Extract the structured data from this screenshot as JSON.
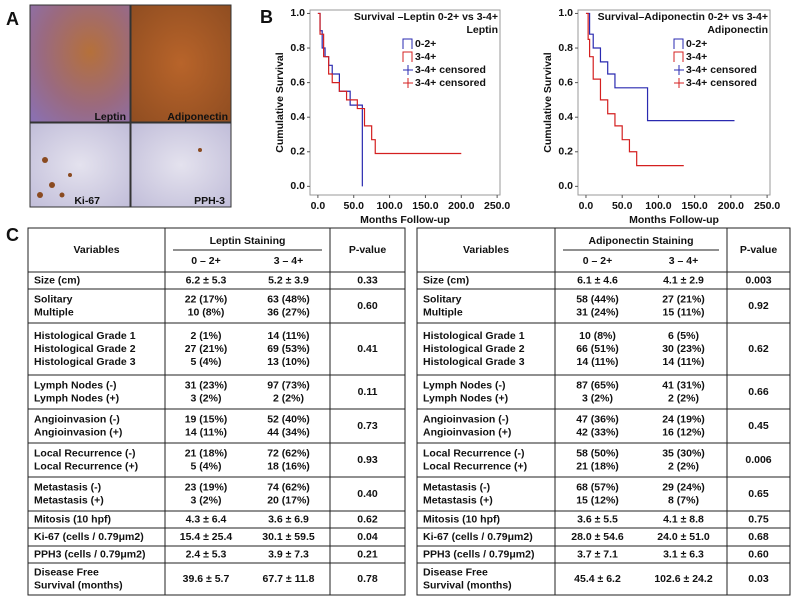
{
  "panel_labels": [
    "A",
    "B",
    "C"
  ],
  "images": [
    "Leptin",
    "Adiponectin",
    "Ki-67",
    "PPH-3"
  ],
  "chart_data": [
    {
      "type": "line",
      "title": "Survival –Leptin 0-2+ vs 3-4+",
      "subtitle": "Leptin",
      "y_label": "Cumulative Survival",
      "x_label": "Months Follow-up",
      "xlim": [
        -11,
        254
      ],
      "ylim": [
        -0.05,
        1.02
      ],
      "xticks": [
        {
          "value": 0,
          "label": "0.0"
        },
        {
          "value": 50,
          "label": "50.0"
        },
        {
          "value": 100,
          "label": "100.0"
        },
        {
          "value": 150,
          "label": "150.0"
        },
        {
          "value": 200,
          "label": "200.0"
        },
        {
          "value": 250,
          "label": "250.0"
        }
      ],
      "yticks": [
        {
          "value": 0,
          "label": "0.0"
        },
        0.2,
        0.4,
        0.6,
        0.8,
        {
          "value": 1,
          "label": "1.0"
        }
      ],
      "series": [
        {
          "name": "0-2+",
          "color": "#2a2ab0",
          "x": [
            0,
            3,
            6,
            10,
            15,
            20,
            30,
            45,
            60,
            62
          ],
          "values": [
            1,
            0.9,
            0.8,
            0.75,
            0.7,
            0.65,
            0.55,
            0.47,
            0.47,
            0.0
          ]
        },
        {
          "name": "3-4+",
          "color": "#d42020",
          "x": [
            0,
            3,
            8,
            15,
            20,
            30,
            40,
            55,
            65,
            75,
            80,
            200
          ],
          "values": [
            1,
            0.88,
            0.75,
            0.65,
            0.6,
            0.55,
            0.5,
            0.45,
            0.35,
            0.27,
            0.19,
            0.19
          ]
        }
      ],
      "censored_legend": [
        {
          "name": "3-4+ censored",
          "color": "#2a2ab0"
        },
        {
          "name": "3-4+ censored",
          "color": "#d42020"
        }
      ]
    },
    {
      "type": "line",
      "title": "Survival–Adiponectin 0-2+ vs 3-4+",
      "subtitle": "Adiponectin",
      "y_label": "Cumulative Survival",
      "x_label": "Months Follow-up",
      "xlim": [
        -11,
        254
      ],
      "ylim": [
        -0.05,
        1.02
      ],
      "xticks": [
        {
          "value": 0,
          "label": "0.0"
        },
        {
          "value": 50,
          "label": "50.0"
        },
        {
          "value": 100,
          "label": "100.0"
        },
        {
          "value": 150,
          "label": "150.0"
        },
        {
          "value": 200,
          "label": "200.0"
        },
        {
          "value": 250,
          "label": "250.0"
        }
      ],
      "yticks": [
        {
          "value": 0,
          "label": "0.0"
        },
        0.2,
        0.4,
        0.6,
        0.8,
        {
          "value": 1,
          "label": "1.0"
        }
      ],
      "series": [
        {
          "name": "0-2+",
          "color": "#2a2ab0",
          "x": [
            0,
            5,
            10,
            20,
            30,
            40,
            85,
            205
          ],
          "values": [
            1,
            0.88,
            0.8,
            0.72,
            0.65,
            0.57,
            0.38,
            0.38
          ]
        },
        {
          "name": "3-4+",
          "color": "#d42020",
          "x": [
            0,
            3,
            5,
            10,
            20,
            30,
            40,
            50,
            60,
            70,
            135
          ],
          "values": [
            1,
            0.85,
            0.75,
            0.62,
            0.5,
            0.42,
            0.35,
            0.27,
            0.2,
            0.12,
            0.12
          ]
        }
      ],
      "censored_legend": [
        {
          "name": "3-4+ censored",
          "color": "#2a2ab0"
        },
        {
          "name": "3-4+ censored",
          "color": "#d42020"
        }
      ]
    }
  ],
  "tables": [
    {
      "header": {
        "variables": "Variables",
        "staining": "Leptin Staining",
        "low": "0 – 2+",
        "high": "3 – 4+",
        "p": "P-value"
      },
      "rows": [
        {
          "variables": [
            "Size (cm)"
          ],
          "low": [
            "6.2 ± 5.3"
          ],
          "high": [
            "5.2 ± 3.9"
          ],
          "p": "0.33"
        },
        {
          "variables": [
            "Solitary",
            "Multiple"
          ],
          "low": [
            "22 (17%)",
            "10 (8%)"
          ],
          "high": [
            "63 (48%)",
            "36 (27%)"
          ],
          "p": "0.60"
        },
        {
          "variables": [
            "Histological Grade 1",
            "Histological Grade 2",
            "Histological Grade 3"
          ],
          "low": [
            "2 (1%)",
            "27 (21%)",
            "5 (4%)"
          ],
          "high": [
            "14 (11%)",
            "69 (53%)",
            "13 (10%)"
          ],
          "p": "0.41"
        },
        {
          "variables": [
            "Lymph Nodes (-)",
            "Lymph Nodes (+)"
          ],
          "low": [
            "31 (23%)",
            "3 (2%)"
          ],
          "high": [
            "97 (73%)",
            "2 (2%)"
          ],
          "p": "0.11"
        },
        {
          "variables": [
            "Angioinvasion (-)",
            "Angioinvasion (+)"
          ],
          "low": [
            "19 (15%)",
            "14 (11%)"
          ],
          "high": [
            "52 (40%)",
            "44 (34%)"
          ],
          "p": "0.73"
        },
        {
          "variables": [
            "Local Recurrence (-)",
            "Local Recurrence (+)"
          ],
          "low": [
            "21 (18%)",
            "5 (4%)"
          ],
          "high": [
            "72 (62%)",
            "18 (16%)"
          ],
          "p": "0.93"
        },
        {
          "variables": [
            "Metastasis (-)",
            "Metastasis (+)"
          ],
          "low": [
            "23 (19%)",
            "3 (2%)"
          ],
          "high": [
            "74 (62%)",
            "20 (17%)"
          ],
          "p": "0.40"
        },
        {
          "variables": [
            "Mitosis (10 hpf)"
          ],
          "low": [
            "4.3 ± 6.4"
          ],
          "high": [
            "3.6 ± 6.9"
          ],
          "p": "0.62"
        },
        {
          "variables": [
            "Ki-67 (cells / 0.79μm2)"
          ],
          "low": [
            "15.4 ± 25.4"
          ],
          "high": [
            "30.1 ± 59.5"
          ],
          "p": "0.04"
        },
        {
          "variables": [
            "PPH3 (cells / 0.79μm2)"
          ],
          "low": [
            "2.4 ± 5.3"
          ],
          "high": [
            "3.9 ± 7.3"
          ],
          "p": "0.21"
        },
        {
          "variables": [
            "Disease Free",
            "Survival (months)"
          ],
          "low": [
            "39.6 ± 5.7"
          ],
          "high": [
            "67.7 ± 11.8"
          ],
          "p": "0.78"
        }
      ]
    },
    {
      "header": {
        "variables": "Variables",
        "staining": "Adiponectin Staining",
        "low": "0 – 2+",
        "high": "3 – 4+",
        "p": "P-value"
      },
      "rows": [
        {
          "variables": [
            "Size (cm)"
          ],
          "low": [
            "6.1 ± 4.6"
          ],
          "high": [
            "4.1 ± 2.9"
          ],
          "p": "0.003"
        },
        {
          "variables": [
            "Solitary",
            "Multiple"
          ],
          "low": [
            "58 (44%)",
            "31 (24%)"
          ],
          "high": [
            "27 (21%)",
            "15 (11%)"
          ],
          "p": "0.92"
        },
        {
          "variables": [
            "Histological Grade 1",
            "Histological Grade 2",
            "Histological Grade 3"
          ],
          "low": [
            "10 (8%)",
            "66 (51%)",
            "14 (11%)"
          ],
          "high": [
            "6 (5%)",
            "30 (23%)",
            "14 (11%)"
          ],
          "p": "0.62"
        },
        {
          "variables": [
            "Lymph Nodes (-)",
            "Lymph Nodes (+)"
          ],
          "low": [
            "87 (65%)",
            "3 (2%)"
          ],
          "high": [
            "41 (31%)",
            "2 (2%)"
          ],
          "p": "0.66"
        },
        {
          "variables": [
            "Angioinvasion (-)",
            "Angioinvasion (+)"
          ],
          "low": [
            "47 (36%)",
            "42 (33%)"
          ],
          "high": [
            "24 (19%)",
            "16 (12%)"
          ],
          "p": "0.45"
        },
        {
          "variables": [
            "Local Recurrence (-)",
            "Local Recurrence (+)"
          ],
          "low": [
            "58 (50%)",
            "21 (18%)"
          ],
          "high": [
            "35 (30%)",
            "2 (2%)"
          ],
          "p": "0.006"
        },
        {
          "variables": [
            "Metastasis (-)",
            "Metastasis (+)"
          ],
          "low": [
            "68 (57%)",
            "15 (12%)"
          ],
          "high": [
            "29 (24%)",
            "8 (7%)"
          ],
          "p": "0.65"
        },
        {
          "variables": [
            "Mitosis (10 hpf)"
          ],
          "low": [
            "3.6 ± 5.5"
          ],
          "high": [
            "4.1 ± 8.8"
          ],
          "p": "0.75"
        },
        {
          "variables": [
            "Ki-67 (cells / 0.79μm2)"
          ],
          "low": [
            "28.0 ± 54.6"
          ],
          "high": [
            "24.0 ± 51.0"
          ],
          "p": "0.68"
        },
        {
          "variables": [
            "PPH3 (cells / 0.79μm2)"
          ],
          "low": [
            "3.7 ± 7.1"
          ],
          "high": [
            "3.1 ± 6.3"
          ],
          "p": "0.60"
        },
        {
          "variables": [
            "Disease Free",
            "Survival (months)"
          ],
          "low": [
            "45.4 ± 6.2"
          ],
          "high": [
            "102.6 ± 24.2"
          ],
          "p": "0.03"
        }
      ]
    }
  ]
}
